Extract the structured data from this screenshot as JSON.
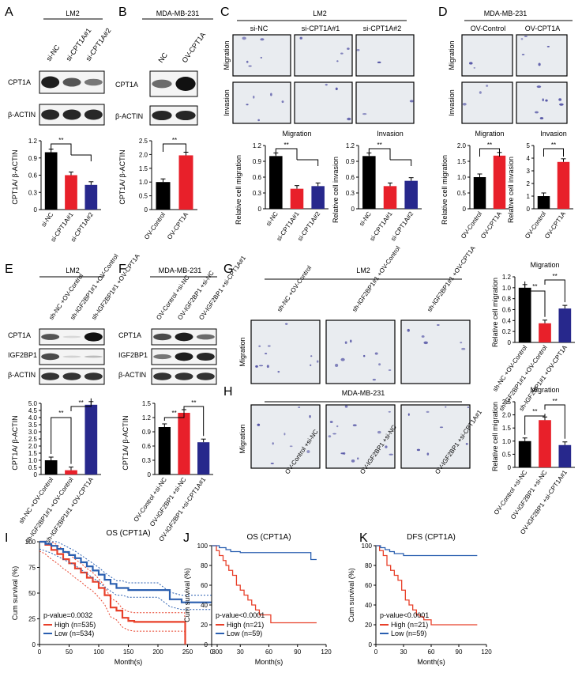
{
  "colors": {
    "black": "#000000",
    "red": "#e8202a",
    "blue": "#27288c",
    "curve_red": "#e8402a",
    "curve_blue": "#2a5fb0",
    "stain": "#4a4aa0",
    "field_bg": "#e9ecf0"
  },
  "panels": {
    "A": {
      "letter": "A",
      "group": "LM2",
      "lanes": [
        "si-NC",
        "si-CPT1A#1",
        "si-CPT1A#2"
      ],
      "blots": [
        "CPT1A",
        "β-ACTIN"
      ],
      "ylabel": "CPT1A/ β-ACTIN",
      "sig": "**",
      "chart": {
        "type": "bar",
        "categories": [
          "si-NC",
          "si-CPT1A#1",
          "si-CPT1A#2"
        ],
        "values": [
          1.0,
          0.6,
          0.43
        ],
        "ticks": [
          "0",
          "0.3",
          "0.6",
          "0.9",
          "1.2"
        ],
        "ylim": [
          0,
          1.2
        ]
      }
    },
    "B": {
      "letter": "B",
      "group": "MDA-MB-231",
      "lanes": [
        "NC",
        "OV-CPT1A"
      ],
      "blots": [
        "CPT1A",
        "β-ACTIN"
      ],
      "ylabel": "CPT1A/ β-ACTIN",
      "sig": "**",
      "chart": {
        "type": "bar",
        "categories": [
          "OV-Control",
          "OV-CPT1A"
        ],
        "values": [
          1.0,
          1.97
        ],
        "ticks": [
          "0",
          "0.5",
          "1.0",
          "1.5",
          "2.0",
          "2.5"
        ],
        "ylim": [
          0,
          2.5
        ]
      }
    },
    "C": {
      "letter": "C",
      "group": "LM2",
      "cols": [
        "si-NC",
        "si-CPT1A#1",
        "si-CPT1A#2"
      ],
      "rows": [
        "Migration",
        "Invasion"
      ],
      "chart1": {
        "type": "bar",
        "title": "Migration",
        "ylabel": "Relative cell migration",
        "sig": "**",
        "categories": [
          "si-NC",
          "si-CPT1A#1",
          "si-CPT1A#2"
        ],
        "values": [
          1.0,
          0.38,
          0.43
        ],
        "ticks": [
          "0",
          "0.3",
          "0.6",
          "0.9",
          "1.2"
        ],
        "ylim": [
          0,
          1.2
        ]
      },
      "chart2": {
        "type": "bar",
        "title": "Invasion",
        "ylabel": "Relative cell invasion",
        "sig": "**",
        "categories": [
          "si-NC",
          "si-CPT1A#1",
          "si-CPT1A#2"
        ],
        "values": [
          1.0,
          0.43,
          0.53
        ],
        "ticks": [
          "0",
          "0.3",
          "0.6",
          "0.9",
          "1.2"
        ],
        "ylim": [
          0,
          1.2
        ]
      }
    },
    "D": {
      "letter": "D",
      "group": "MDA-MB-231",
      "cols": [
        "OV-Control",
        "OV-CPT1A"
      ],
      "rows": [
        "Migration",
        "Invasion"
      ],
      "chart1": {
        "type": "bar",
        "title": "Migration",
        "ylabel": "Relative cell migration",
        "sig": "**",
        "categories": [
          "OV-Control",
          "OV-CPT1A"
        ],
        "values": [
          1.0,
          1.68
        ],
        "ticks": [
          "0",
          "0.5",
          "1.0",
          "1.5",
          "2.0"
        ],
        "ylim": [
          0,
          2.0
        ]
      },
      "chart2": {
        "type": "bar",
        "title": "Invasion",
        "ylabel": "Relative cell invasion",
        "sig": "**",
        "categories": [
          "OV-Control",
          "OV-CPT1A"
        ],
        "values": [
          1.0,
          3.7
        ],
        "ticks": [
          "0",
          "1",
          "2",
          "3",
          "4",
          "5"
        ],
        "ylim": [
          0,
          5
        ]
      }
    },
    "E": {
      "letter": "E",
      "group": "LM2",
      "lanes": [
        "sh-NC +OV-Control",
        "sh-IGF2BP1#1 +OV-Control",
        "sh-IGF2BP1#1 +OV-CPT1A"
      ],
      "blots": [
        "CPT1A",
        "IGF2BP1",
        "β-ACTIN"
      ],
      "ylabel": "CPT1A/ β-ACTIN",
      "sig": "**",
      "chart": {
        "type": "bar",
        "categories": [
          "sh-NC +OV-Control",
          "sh-IGF2BP1#1 +OV-Control",
          "sh-IGF2BP1#1 +OV-CPT1A"
        ],
        "values": [
          1.0,
          0.3,
          4.9
        ],
        "ticks": [
          "0",
          "0.5",
          "1.0",
          "1.5",
          "2.0",
          "2.5",
          "3.0",
          "3.5",
          "4.0",
          "4.5",
          "5.0"
        ],
        "ylim": [
          0,
          5.0
        ]
      }
    },
    "F": {
      "letter": "F",
      "group": "MDA-MB-231",
      "lanes": [
        "OV-Control +si-NC",
        "OV-IGF2BP1 +si-NC",
        "OV-IGF2BP1 +si-CPT1A#1"
      ],
      "blots": [
        "CPT1A",
        "IGF2BP1",
        "β-ACTIN"
      ],
      "ylabel": "CPT1A/ β-ACTIN",
      "sig": "**",
      "chart": {
        "type": "bar",
        "categories": [
          "OV-Control +si-NC",
          "OV-IGF2BP1 +si-NC",
          "OV-IGF2BP1 +si-CPT1A#1"
        ],
        "values": [
          1.0,
          1.3,
          0.68
        ],
        "ticks": [
          "0",
          "0.3",
          "0.6",
          "0.9",
          "1.2",
          "1.5"
        ],
        "ylim": [
          0,
          1.5
        ]
      }
    },
    "G": {
      "letter": "G",
      "group": "LM2",
      "row": "Migration",
      "cols": [
        "sh-NC +OV-Control",
        "sh-IGF2BP1#1 +OV-Control",
        "sh-IGF2BP1#1 +OV-CPT1A"
      ],
      "chart": {
        "type": "bar",
        "title": "Migration",
        "ylabel": "Relative cell migration",
        "sig": "**",
        "categories": [
          "sh-NC +OV-Control",
          "sh-IGF2BP1#1 +OV-Control",
          "sh-IGF2BP1#1 +OV-CPT1A"
        ],
        "values": [
          1.0,
          0.35,
          0.62
        ],
        "ticks": [
          "0",
          "0.2",
          "0.4",
          "0.6",
          "0.8",
          "1.0",
          "1.2"
        ],
        "ylim": [
          0,
          1.2
        ]
      }
    },
    "H": {
      "letter": "H",
      "group": "MDA-MB-231",
      "row": "Migration",
      "cols": [
        "OV-Control +si-NC",
        "OV-IGF2BP1 +si-NC",
        "OV-IGF2BP1 +si-CPT1A#1"
      ],
      "chart": {
        "type": "bar",
        "title": "Migration",
        "ylabel": "Relative cell migration",
        "sig": "**",
        "categories": [
          "OV-Control +si-NC",
          "OV-IGF2BP1 +si-NC",
          "OV-IGF2BP1 +si-CPT1A#1"
        ],
        "values": [
          1.0,
          1.8,
          0.85
        ],
        "ticks": [
          "0",
          "0.5",
          "1.0",
          "1.5",
          "2.0",
          "2.5"
        ],
        "ylim": [
          0,
          2.5
        ]
      }
    },
    "I": {
      "letter": "I",
      "title": "OS (CPT1A)",
      "ylabel": "Cum survival (%)",
      "xlabel": "Month(s)",
      "pvalue": "p-value=0.0032",
      "legend": [
        {
          "name": "High (n=535)",
          "color": "red"
        },
        {
          "name": "Low (n=534)",
          "color": "blue"
        }
      ],
      "chart": {
        "type": "line",
        "xticks": [
          "0",
          "50",
          "100",
          "150",
          "200",
          "250",
          "300"
        ],
        "yticks": [
          "0",
          "25",
          "50",
          "75",
          "100"
        ],
        "xlim": [
          0,
          300
        ],
        "ylim": [
          0,
          100
        ],
        "series": [
          {
            "name": "High (n=535)",
            "x": [
              0,
              10,
              20,
              30,
              40,
              50,
              60,
              70,
              80,
              90,
              100,
              110,
              120,
              130,
              140,
              150,
              160,
              200,
              245,
              246
            ],
            "y": [
              100,
              97,
              92,
              88,
              83,
              79,
              74,
              70,
              65,
              61,
              55,
              48,
              36,
              33,
              26,
              23,
              22,
              22,
              22,
              0
            ]
          },
          {
            "name": "Low (n=534)",
            "x": [
              0,
              10,
              20,
              30,
              40,
              50,
              60,
              70,
              80,
              90,
              100,
              110,
              120,
              130,
              140,
              150,
              200,
              220,
              240,
              290
            ],
            "y": [
              100,
              98,
              96,
              93,
              90,
              87,
              84,
              80,
              76,
              72,
              68,
              63,
              59,
              55,
              55,
              53,
              53,
              44,
              41,
              41
            ]
          }
        ]
      }
    },
    "J": {
      "letter": "J",
      "title": "OS (CPT1A)",
      "ylabel": "Cum survival (%)",
      "xlabel": "Month(s)",
      "pvalue": "p-value<0.0001",
      "legend": [
        {
          "name": "High (n=21)",
          "color": "red"
        },
        {
          "name": "Low (n=59)",
          "color": "blue"
        }
      ],
      "chart": {
        "type": "line",
        "xticks": [
          "0",
          "30",
          "60",
          "90",
          "120"
        ],
        "yticks": [
          "0",
          "20",
          "40",
          "60",
          "80",
          "100"
        ],
        "xlim": [
          0,
          120
        ],
        "ylim": [
          0,
          100
        ],
        "series": [
          {
            "name": "High (n=21)",
            "x": [
              0,
              5,
              8,
              12,
              15,
              18,
              22,
              26,
              30,
              34,
              38,
              42,
              46,
              50,
              55,
              62,
              70,
              110
            ],
            "y": [
              100,
              95,
              90,
              85,
              80,
              75,
              70,
              60,
              55,
              50,
              45,
              40,
              35,
              30,
              30,
              22,
              22,
              22
            ]
          },
          {
            "name": "Low (n=59)",
            "x": [
              0,
              8,
              15,
              20,
              30,
              60,
              100,
              104,
              110
            ],
            "y": [
              100,
              98,
              96,
              94,
              93,
              93,
              93,
              86,
              86
            ]
          }
        ]
      }
    },
    "K": {
      "letter": "K",
      "title": "DFS (CPT1A)",
      "ylabel": "Cum survival (%)",
      "xlabel": "Month(s)",
      "pvalue": "p-value<0.0001",
      "legend": [
        {
          "name": "High (n=21)",
          "color": "red"
        },
        {
          "name": "Low (n=59)",
          "color": "blue"
        }
      ],
      "chart": {
        "type": "line",
        "xticks": [
          "0",
          "30",
          "60",
          "90",
          "120"
        ],
        "yticks": [
          "0",
          "20",
          "40",
          "60",
          "80",
          "100"
        ],
        "xlim": [
          0,
          120
        ],
        "ylim": [
          0,
          100
        ],
        "series": [
          {
            "name": "High (n=21)",
            "x": [
              0,
              4,
              8,
              12,
              16,
              20,
              24,
              28,
              32,
              36,
              40,
              44,
              48,
              52,
              60,
              68,
              110
            ],
            "y": [
              100,
              95,
              90,
              80,
              75,
              70,
              65,
              55,
              45,
              40,
              35,
              30,
              28,
              25,
              20,
              20,
              20
            ]
          },
          {
            "name": "Low (n=59)",
            "x": [
              0,
              5,
              10,
              15,
              20,
              30,
              60,
              110
            ],
            "y": [
              100,
              98,
              96,
              94,
              92,
              90,
              90,
              90
            ]
          }
        ]
      }
    }
  }
}
